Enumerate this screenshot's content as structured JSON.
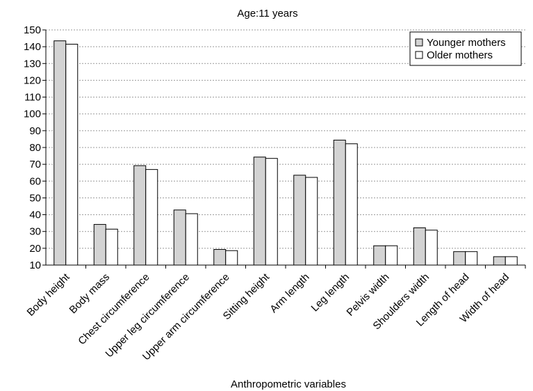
{
  "chart_data": {
    "type": "bar",
    "title": "Age:11 years",
    "xlabel": "Anthropometric variables",
    "ylabel": "",
    "ylim": [
      10,
      150
    ],
    "yticks": [
      10,
      20,
      30,
      40,
      50,
      60,
      70,
      80,
      90,
      100,
      110,
      120,
      130,
      140,
      150
    ],
    "grid": "horizontal dotted",
    "legend_position": "top-right",
    "categories": [
      "Body height",
      "Body mass",
      "Chest circumference",
      "Upper leg circumference",
      "Upper arm circumference",
      "Sitting height",
      "Arm length",
      "Leg length",
      "Pelvis width",
      "Shoulders width",
      "Length of head",
      "Width of head"
    ],
    "series": [
      {
        "name": "Younger mothers",
        "color": "#d3d3d3",
        "values": [
          143.5,
          34.2,
          69.2,
          42.8,
          19.3,
          74.3,
          63.5,
          84.4,
          21.5,
          32.2,
          18.0,
          15.0
        ]
      },
      {
        "name": "Older mothers",
        "color": "#ffffff",
        "values": [
          141.5,
          31.4,
          66.9,
          40.6,
          18.6,
          73.5,
          62.2,
          82.2,
          21.5,
          30.8,
          18.0,
          15.0
        ]
      }
    ]
  }
}
